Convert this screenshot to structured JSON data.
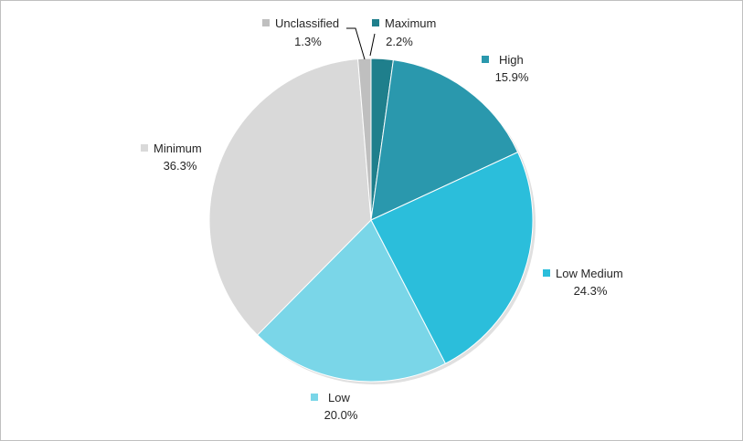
{
  "chart_data": {
    "type": "pie",
    "title": "",
    "start_angle_deg": 0,
    "direction": "clockwise",
    "legend": "none",
    "slices": [
      {
        "label": "Maximum",
        "value": 2.2,
        "value_label": "2.2%",
        "color": "#1f7f8c"
      },
      {
        "label": "High",
        "value": 15.9,
        "value_label": "15.9%",
        "color": "#2a98ad"
      },
      {
        "label": "Low Medium",
        "value": 24.3,
        "value_label": "24.3%",
        "color": "#2bbedb"
      },
      {
        "label": "Low",
        "value": 20.0,
        "value_label": "20.0%",
        "color": "#7ad6e8"
      },
      {
        "label": "Minimum",
        "value": 36.3,
        "value_label": "36.3%",
        "color": "#d9d9d9"
      },
      {
        "label": "Unclassified",
        "value": 1.3,
        "value_label": "1.3%",
        "color": "#bfbfbf"
      }
    ]
  }
}
